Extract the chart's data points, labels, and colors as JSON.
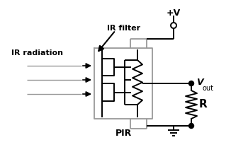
{
  "bg_color": "#ffffff",
  "line_color": "#000000",
  "gray_color": "#999999",
  "labels": {
    "ir_filter": "IR filter",
    "ir_radiation": "IR radiation",
    "pir": "PIR",
    "vout": "V",
    "vout_sub": "out",
    "plus_v": "+V",
    "R": "R"
  },
  "figsize": [
    3.5,
    2.15
  ],
  "dpi": 100
}
